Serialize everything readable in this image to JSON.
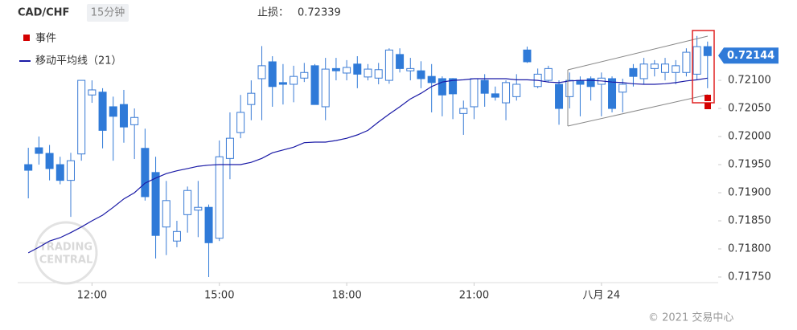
{
  "chart_data": {
    "type": "candlestick",
    "title": "CAD/CHF",
    "timeframe": "15分钟",
    "stop_loss": {
      "label": "止损：",
      "value": 0.72339
    },
    "last_price": 0.72144,
    "legend": {
      "event": {
        "name": "事件",
        "color": "#d40000"
      }
    },
    "copyright": "© 2021 交易中心",
    "watermark": [
      "TRADING",
      "CENTRAL"
    ],
    "up_color": "#3a7bd5",
    "down_color": "#2f7ad8",
    "xlim": [
      10.25,
      26.75
    ],
    "ylim": [
      0.7174,
      0.72243
    ],
    "xticks": [
      {
        "value": 12,
        "label": "12:00"
      },
      {
        "value": 15,
        "label": "15:00"
      },
      {
        "value": 18,
        "label": "18:00"
      },
      {
        "value": 21,
        "label": "21:00"
      },
      {
        "value": 24,
        "label": "八月 24"
      }
    ],
    "yticks": [
      {
        "value": 0.7175,
        "label": "0.71750"
      },
      {
        "value": 0.718,
        "label": "0.71800"
      },
      {
        "value": 0.7185,
        "label": "0.71850"
      },
      {
        "value": 0.719,
        "label": "0.71900"
      },
      {
        "value": 0.7195,
        "label": "0.71950"
      },
      {
        "value": 0.72,
        "label": "0.72000"
      },
      {
        "value": 0.7205,
        "label": "0.72050"
      },
      {
        "value": 0.721,
        "label": "0.72100"
      }
    ],
    "x": [
      10.5,
      10.75,
      11,
      11.25,
      11.5,
      11.75,
      12,
      12.25,
      12.5,
      12.75,
      13,
      13.25,
      13.5,
      13.75,
      14,
      14.25,
      14.5,
      14.75,
      15,
      15.25,
      15.5,
      15.75,
      16,
      16.25,
      16.5,
      16.75,
      17,
      17.25,
      17.5,
      17.75,
      18,
      18.25,
      18.5,
      18.75,
      19,
      19.25,
      19.5,
      19.75,
      20,
      20.25,
      20.5,
      20.75,
      21,
      21.25,
      21.5,
      21.75,
      22,
      22.25,
      22.5,
      22.75,
      23,
      23.25,
      23.5,
      23.75,
      24,
      24.25,
      24.5,
      24.75,
      25,
      25.25,
      25.5,
      25.75,
      26,
      26.25,
      26.5
    ],
    "open": [
      0.7195,
      0.7198,
      0.7197,
      0.7195,
      0.71922,
      0.71969,
      0.72074,
      0.72079,
      0.72053,
      0.72057,
      0.72021,
      0.71979,
      0.71936,
      0.71839,
      0.71814,
      0.71861,
      0.71869,
      0.71874,
      0.71819,
      0.71961,
      0.72007,
      0.72057,
      0.72103,
      0.72133,
      0.72096,
      0.72093,
      0.72104,
      0.72126,
      0.72053,
      0.72121,
      0.72113,
      0.72129,
      0.72106,
      0.72104,
      0.721,
      0.72146,
      0.72117,
      0.72117,
      0.72107,
      0.72103,
      0.72103,
      0.72041,
      0.72053,
      0.721,
      0.72076,
      0.7206,
      0.72071,
      0.72154,
      0.72089,
      0.721,
      0.72093,
      0.72071,
      0.721,
      0.72103,
      0.72093,
      0.72103,
      0.72079,
      0.72121,
      0.72103,
      0.72121,
      0.72114,
      0.72114,
      0.72114,
      0.72111,
      0.7216
    ],
    "high": [
      0.7198,
      0.72,
      0.71985,
      0.71964,
      0.71971,
      0.721,
      0.721,
      0.72086,
      0.72071,
      0.72083,
      0.7205,
      0.72014,
      0.71964,
      0.71921,
      0.7185,
      0.71911,
      0.71921,
      0.71879,
      0.71993,
      0.72043,
      0.72074,
      0.721,
      0.72161,
      0.72143,
      0.72129,
      0.72126,
      0.72131,
      0.72129,
      0.7214,
      0.7214,
      0.72136,
      0.72143,
      0.72129,
      0.72131,
      0.72157,
      0.72157,
      0.7214,
      0.72134,
      0.72129,
      0.72107,
      0.72104,
      0.72064,
      0.72103,
      0.72111,
      0.72089,
      0.721,
      0.72111,
      0.7216,
      0.72121,
      0.72126,
      0.721,
      0.72114,
      0.72107,
      0.72107,
      0.72114,
      0.72107,
      0.72103,
      0.72129,
      0.7214,
      0.72136,
      0.7214,
      0.72136,
      0.72157,
      0.72179,
      0.72169
    ],
    "low": [
      0.7189,
      0.7195,
      0.71922,
      0.71915,
      0.71857,
      0.71957,
      0.7206,
      0.71979,
      0.71957,
      0.71989,
      0.7196,
      0.71886,
      0.71783,
      0.71789,
      0.71803,
      0.71829,
      0.71821,
      0.7175,
      0.71814,
      0.71924,
      0.71997,
      0.72029,
      0.72029,
      0.72053,
      0.72057,
      0.72061,
      0.72097,
      0.72057,
      0.72029,
      0.721,
      0.721,
      0.72086,
      0.721,
      0.72093,
      0.72094,
      0.72114,
      0.721,
      0.72086,
      0.72043,
      0.72036,
      0.72031,
      0.72003,
      0.72031,
      0.72053,
      0.72064,
      0.72029,
      0.72064,
      0.72131,
      0.72086,
      0.72096,
      0.72021,
      0.7205,
      0.72036,
      0.72064,
      0.72036,
      0.72043,
      0.72043,
      0.72089,
      0.72093,
      0.72107,
      0.721,
      0.72093,
      0.72107,
      0.721,
      0.72086
    ],
    "close": [
      0.7194,
      0.7197,
      0.71943,
      0.71922,
      0.71957,
      0.721,
      0.72083,
      0.72011,
      0.72036,
      0.72017,
      0.72034,
      0.71893,
      0.71824,
      0.71886,
      0.71831,
      0.71904,
      0.71874,
      0.71811,
      0.71964,
      0.71997,
      0.72043,
      0.72077,
      0.72126,
      0.72089,
      0.72093,
      0.72107,
      0.72114,
      0.72057,
      0.7212,
      0.72117,
      0.72123,
      0.72111,
      0.7212,
      0.72119,
      0.72154,
      0.72121,
      0.72121,
      0.72103,
      0.72096,
      0.72074,
      0.72076,
      0.7205,
      0.72103,
      0.72077,
      0.7207,
      0.72096,
      0.72093,
      0.72133,
      0.72111,
      0.72121,
      0.7205,
      0.721,
      0.72093,
      0.72089,
      0.72104,
      0.7205,
      0.72093,
      0.72107,
      0.72129,
      0.72129,
      0.72129,
      0.72126,
      0.7215,
      0.7216,
      0.72144
    ],
    "moving_average": {
      "name": "移动平均线（21）",
      "color": "#1a1aa6",
      "values": [
        0.71793,
        0.71803,
        0.71814,
        0.7182,
        0.71829,
        0.71839,
        0.7185,
        0.7186,
        0.71874,
        0.71889,
        0.719,
        0.71917,
        0.71926,
        0.71934,
        0.71939,
        0.71943,
        0.71947,
        0.71949,
        0.7195,
        0.7195,
        0.7195,
        0.71954,
        0.71961,
        0.71971,
        0.71976,
        0.71981,
        0.71989,
        0.7199,
        0.7199,
        0.71993,
        0.71997,
        0.72003,
        0.72011,
        0.72026,
        0.7204,
        0.72053,
        0.72067,
        0.72077,
        0.72089,
        0.72097,
        0.721,
        0.72101,
        0.72103,
        0.72103,
        0.72103,
        0.72103,
        0.72101,
        0.72101,
        0.721,
        0.72097,
        0.72096,
        0.72099,
        0.721,
        0.721,
        0.72099,
        0.72097,
        0.72096,
        0.72094,
        0.72093,
        0.72093,
        0.72094,
        0.72096,
        0.72099,
        0.72101,
        0.72104
      ]
    }
  }
}
